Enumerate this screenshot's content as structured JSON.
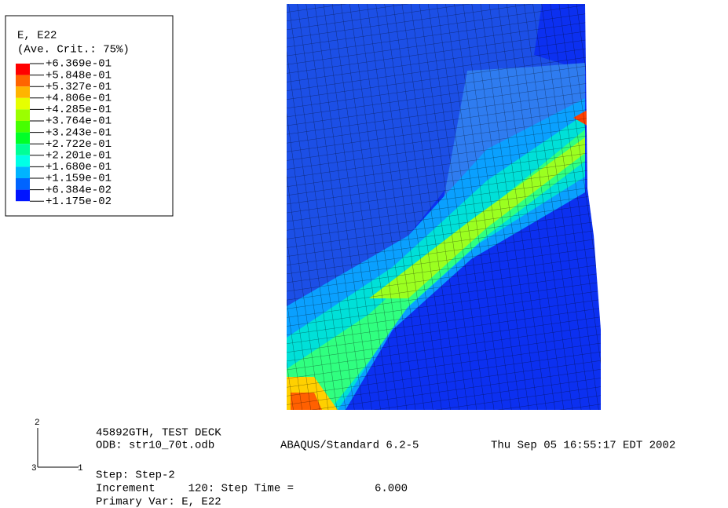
{
  "legend": {
    "title": "E, E22",
    "subtitle": "(Ave. Crit.: 75%)",
    "labels": [
      "+6.369e-01",
      "+5.848e-01",
      "+5.327e-01",
      "+4.806e-01",
      "+4.285e-01",
      "+3.764e-01",
      "+3.243e-01",
      "+2.722e-01",
      "+2.201e-01",
      "+1.680e-01",
      "+1.159e-01",
      "+6.384e-02",
      "+1.175e-02"
    ],
    "colors": [
      "#ff0000",
      "#ff6400",
      "#ffb400",
      "#e6ff00",
      "#9bff00",
      "#46ff00",
      "#00ff28",
      "#00ff96",
      "#00ffe6",
      "#00b4ff",
      "#0064ff",
      "#0014ff"
    ]
  },
  "triad": {
    "axis_2": "2",
    "axis_3": "3",
    "axis_1": "1"
  },
  "info": {
    "title": "45892GTH, TEST DECK",
    "odb": "ODB: str10_70t.odb",
    "solver": "ABAQUS/Standard 6.2-5",
    "date": "Thu Sep 05 16:55:17 EDT 2002",
    "step": "Step: Step-2",
    "increment": "Increment     120: Step Time =",
    "step_time": "6.000",
    "primary_var": "Primary Var: E, E22"
  }
}
